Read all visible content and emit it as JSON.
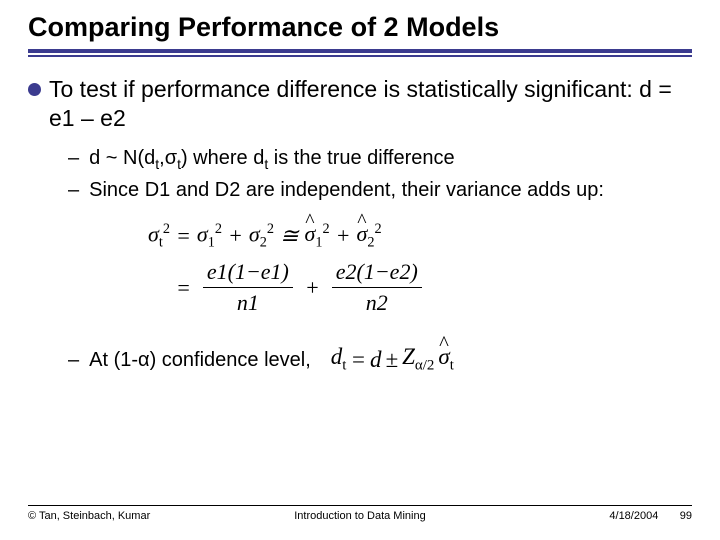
{
  "title": "Comparing Performance of 2 Models",
  "bullet_main": "To test if performance difference is statistically significant:  d = e1 – e2",
  "sub1_prefix": "d ~ N(d",
  "sub1_t1": "t",
  "sub1_mid1": ",σ",
  "sub1_t2": "t",
  "sub1_mid2": ")   where d",
  "sub1_t3": "t",
  "sub1_suffix": " is the true difference",
  "sub2": "Since D1 and D2 are independent, their variance adds up:",
  "sub3": "At (1-α) confidence level,",
  "formula": {
    "sigma": "σ",
    "sigma_hat": "σ",
    "eq": "=",
    "plus": "+",
    "approx": "≅",
    "t": "t",
    "one": "1",
    "two": "2",
    "sq": "2",
    "e1num": "e1(1−e1)",
    "n1": "n1",
    "e2num": "e2(1−e2)",
    "n2": "n2"
  },
  "conf": {
    "d": "d",
    "t": "t",
    "eq": "=",
    "pm": "±",
    "Z": "Z",
    "alpha2": "α/2",
    "sigma_hat": "σ"
  },
  "footer": {
    "left": "© Tan, Steinbach, Kumar",
    "center": "Introduction to Data Mining",
    "date": "4/18/2004",
    "page": "99"
  },
  "colors": {
    "rule": "#3b3b8f",
    "bullet": "#3b3b8f",
    "text": "#000000",
    "bg": "#ffffff"
  }
}
